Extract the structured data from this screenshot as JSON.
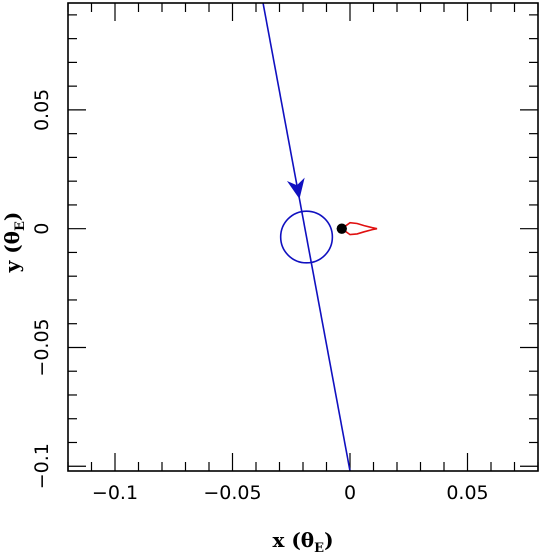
{
  "chart_data": {
    "type": "line",
    "title": "",
    "xlabel": {
      "main": "x (θ",
      "sub": "E",
      "close": ")"
    },
    "ylabel": {
      "main": "y (θ",
      "sub": "E",
      "close": ")"
    },
    "xlim": [
      -0.12,
      0.08
    ],
    "ylim": [
      -0.102,
      0.095
    ],
    "x_ticks": [
      {
        "value": -0.1,
        "label": "−0.1"
      },
      {
        "value": -0.05,
        "label": "−0.05"
      },
      {
        "value": 0,
        "label": "0"
      },
      {
        "value": 0.05,
        "label": "0.05"
      }
    ],
    "y_ticks": [
      {
        "value": -0.1,
        "label": "−0.1"
      },
      {
        "value": -0.05,
        "label": "−0.05"
      },
      {
        "value": 0,
        "label": "0"
      },
      {
        "value": 0.05,
        "label": "0.05"
      }
    ],
    "minor_tick_step": 0.01,
    "grid": false,
    "colors": {
      "trajectory": "#1010c0",
      "caustic": "#e01010",
      "source_circle": "#1010c0",
      "lens": "#000000"
    },
    "series": [
      {
        "kind": "source-trajectory",
        "x": [
          -0.037,
          0.0
        ],
        "y": [
          0.095,
          -0.102
        ],
        "arrow_at": {
          "x": -0.0215,
          "y": 0.0125
        }
      },
      {
        "kind": "source-circle",
        "center": {
          "x": -0.0185,
          "y": -0.0035
        },
        "radius": 0.011
      },
      {
        "kind": "caustic",
        "x": [
          -0.0035,
          0.0,
          0.003,
          0.006,
          0.0095,
          0.0115,
          0.0095,
          0.006,
          0.003,
          0.0,
          -0.0035
        ],
        "y": [
          0.0,
          0.0025,
          0.0022,
          0.0013,
          0.0004,
          0.0,
          -0.0004,
          -0.0013,
          -0.0022,
          -0.0025,
          0.0
        ]
      },
      {
        "kind": "lens",
        "center": {
          "x": -0.0035,
          "y": 0.0
        },
        "radius": 0.0022
      }
    ]
  }
}
